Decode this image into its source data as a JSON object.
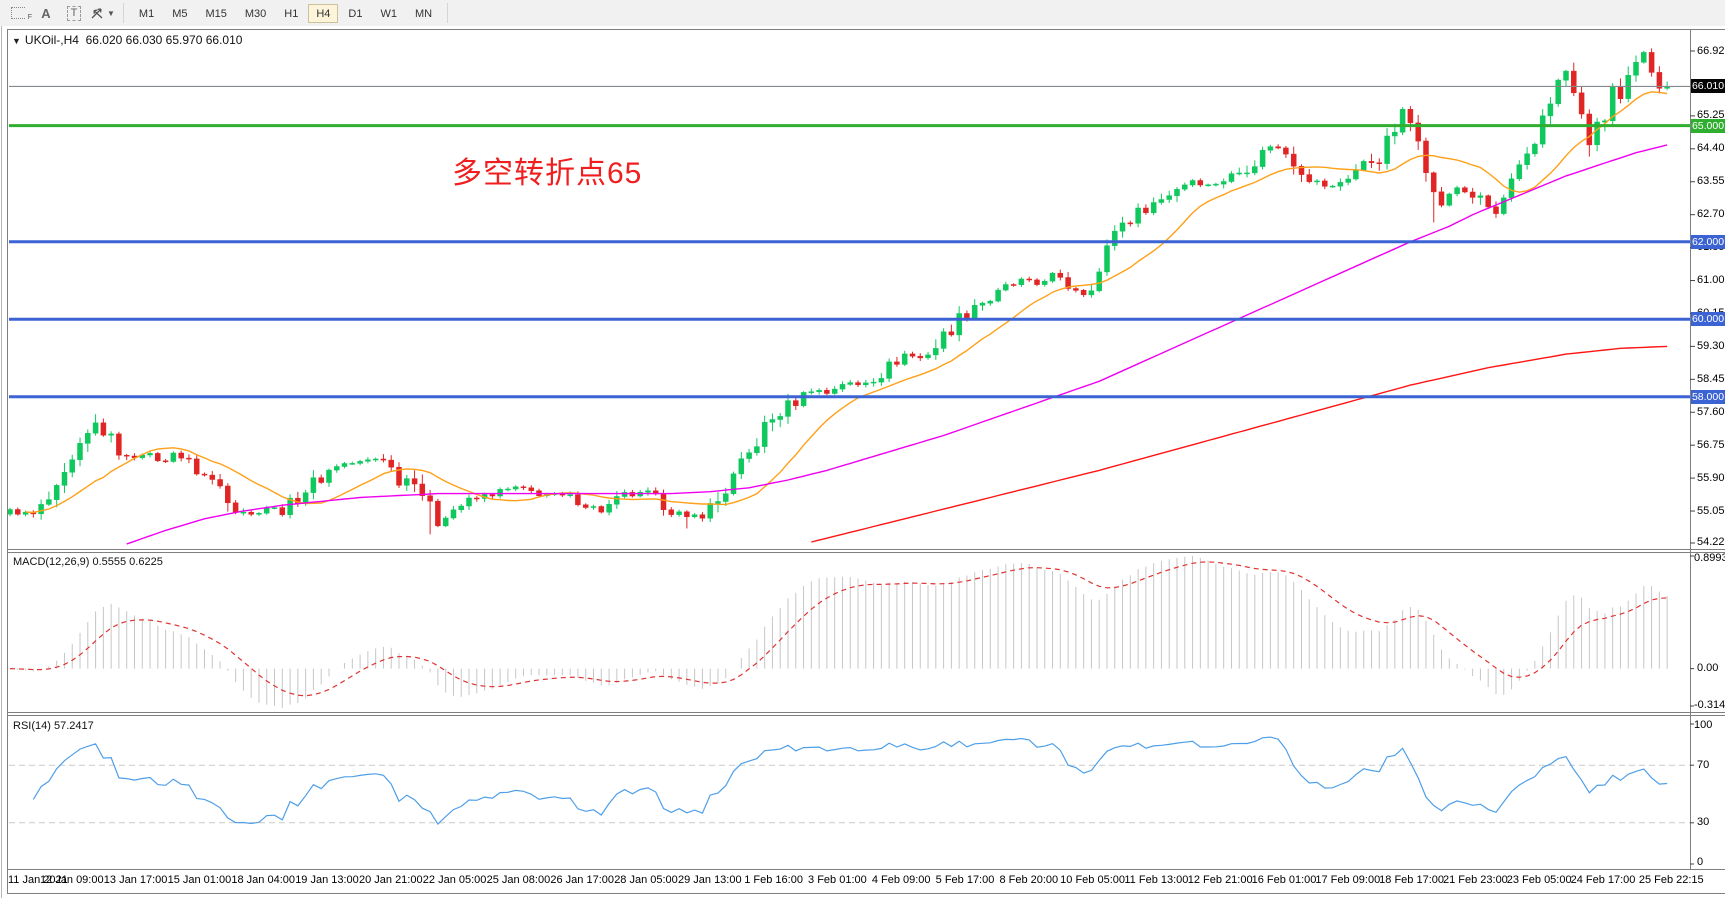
{
  "toolbar": {
    "grid_tool_label": "F",
    "a_tool_label": "A",
    "t_tool_label": "T",
    "timeframes": [
      "M1",
      "M5",
      "M15",
      "M30",
      "H1",
      "H4",
      "D1",
      "W1",
      "MN"
    ],
    "active_timeframe": "H4"
  },
  "title": {
    "collapse_icon": "▼",
    "symbol": "UKOil-,H4",
    "ohlc": "66.020 66.030 65.970 66.010"
  },
  "annotation": {
    "text": "多空转折点65"
  },
  "panes": {
    "macd_label": "MACD(12,26,9) 0.5555 0.6225",
    "rsi_label": "RSI(14) 57.2417"
  },
  "price_axis": {
    "labels": [
      "66.925",
      "65.250",
      "64.400",
      "63.550",
      "62.700",
      "61.850",
      "61.000",
      "60.150",
      "59.300",
      "58.450",
      "57.600",
      "56.750",
      "55.900",
      "55.050",
      "54.225"
    ],
    "prices": [
      66.925,
      65.25,
      64.4,
      63.55,
      62.7,
      61.85,
      61.0,
      60.15,
      59.3,
      58.45,
      57.6,
      56.75,
      55.9,
      55.05,
      54.225
    ],
    "current": {
      "label": "66.010",
      "price": 66.01,
      "bg": "#060606"
    },
    "level_badges": [
      {
        "label": "65.000",
        "price": 65.0,
        "bg": "#2fae2f"
      },
      {
        "label": "62.000",
        "price": 62.0,
        "bg": "#3b63d3"
      },
      {
        "label": "60.000",
        "price": 60.0,
        "bg": "#3b63d3"
      },
      {
        "label": "58.000",
        "price": 58.0,
        "bg": "#3b63d3"
      }
    ]
  },
  "macd_axis": {
    "top": "0.8993",
    "zero": "0.00",
    "bottom": "-0.3143"
  },
  "rsi_axis": {
    "top": "100",
    "upper": "70",
    "lower": "30",
    "bottom": "0",
    "upper_val": 70,
    "lower_val": 30
  },
  "time_axis": [
    "11 Jan 2021",
    "12 Jan 09:00",
    "13 Jan 17:00",
    "15 Jan 01:00",
    "18 Jan 04:00",
    "19 Jan 13:00",
    "20 Jan 21:00",
    "22 Jan 05:00",
    "25 Jan 08:00",
    "26 Jan 17:00",
    "28 Jan 05:00",
    "29 Jan 13:00",
    "1 Feb 16:00",
    "3 Feb 01:00",
    "4 Feb 09:00",
    "5 Feb 17:00",
    "8 Feb 20:00",
    "10 Feb 05:00",
    "11 Feb 13:00",
    "12 Feb 21:00",
    "16 Feb 01:00",
    "17 Feb 09:00",
    "18 Feb 17:00",
    "21 Feb 23:00",
    "23 Feb 05:00",
    "24 Feb 17:00",
    "25 Feb 22:15"
  ],
  "colors": {
    "bull": "#0fc85e",
    "bear": "#e02525",
    "ma_fast": "#ffa018",
    "ma_mid": "#f000f0",
    "ma_slow": "#ff1414",
    "hline_green": "#2fae2f",
    "hline_blue": "#3b63d3",
    "current_line": "#848a90",
    "macd_hist": "#c6c6c6",
    "macd_signal": "#e03333",
    "rsi_line": "#4f9fe8",
    "rsi_levels": "#c9c9c9",
    "annotation": "#f01e1e",
    "frame": "#7f7f7f"
  },
  "chart_data": {
    "type": "candlestick",
    "symbol": "UKOil- H4",
    "visible_price_range": [
      54.05,
      67.45
    ],
    "n_candles": 214,
    "close_waypoints": [
      [
        0,
        55.05
      ],
      [
        3,
        54.95
      ],
      [
        6,
        55.5
      ],
      [
        9,
        56.6
      ],
      [
        11,
        57.3
      ],
      [
        13,
        56.85
      ],
      [
        15,
        56.4
      ],
      [
        17,
        56.55
      ],
      [
        20,
        56.3
      ],
      [
        21,
        56.6
      ],
      [
        24,
        56.1
      ],
      [
        27,
        55.7
      ],
      [
        29,
        55.2
      ],
      [
        31,
        54.95
      ],
      [
        33,
        55.15
      ],
      [
        35,
        55.05
      ],
      [
        38,
        55.6
      ],
      [
        42,
        56.25
      ],
      [
        45,
        56.3
      ],
      [
        48,
        56.45
      ],
      [
        50,
        55.85
      ],
      [
        52,
        55.95
      ],
      [
        54,
        55.1
      ],
      [
        55,
        54.75
      ],
      [
        57,
        55.1
      ],
      [
        59,
        55.3
      ],
      [
        62,
        55.5
      ],
      [
        65,
        55.65
      ],
      [
        68,
        55.5
      ],
      [
        72,
        55.4
      ],
      [
        76,
        55.05
      ],
      [
        79,
        55.45
      ],
      [
        82,
        55.5
      ],
      [
        85,
        55.1
      ],
      [
        87,
        54.85
      ],
      [
        89,
        55.0
      ],
      [
        91,
        55.3
      ],
      [
        93,
        55.9
      ],
      [
        95,
        56.5
      ],
      [
        97,
        57.2
      ],
      [
        99,
        57.6
      ],
      [
        101,
        57.9
      ],
      [
        103,
        58.2
      ],
      [
        105,
        58.1
      ],
      [
        107,
        58.35
      ],
      [
        109,
        58.3
      ],
      [
        112,
        58.6
      ],
      [
        115,
        59.1
      ],
      [
        117,
        59.0
      ],
      [
        119,
        59.3
      ],
      [
        121,
        59.8
      ],
      [
        124,
        60.4
      ],
      [
        126,
        60.5
      ],
      [
        128,
        60.8
      ],
      [
        130,
        61.0
      ],
      [
        132,
        60.9
      ],
      [
        134,
        61.15
      ],
      [
        136,
        60.85
      ],
      [
        138,
        60.7
      ],
      [
        140,
        61.2
      ],
      [
        142,
        62.35
      ],
      [
        144,
        62.6
      ],
      [
        146,
        62.9
      ],
      [
        148,
        63.1
      ],
      [
        150,
        63.4
      ],
      [
        152,
        63.6
      ],
      [
        154,
        63.45
      ],
      [
        156,
        63.6
      ],
      [
        158,
        63.8
      ],
      [
        160,
        64.1
      ],
      [
        162,
        64.5
      ],
      [
        164,
        64.3
      ],
      [
        166,
        63.9
      ],
      [
        168,
        63.5
      ],
      [
        170,
        63.4
      ],
      [
        172,
        63.7
      ],
      [
        174,
        64.0
      ],
      [
        176,
        64.2
      ],
      [
        178,
        64.9
      ],
      [
        179,
        65.35
      ],
      [
        181,
        64.8
      ],
      [
        183,
        63.2
      ],
      [
        184,
        63.0
      ],
      [
        186,
        63.4
      ],
      [
        188,
        63.2
      ],
      [
        190,
        62.9
      ],
      [
        191,
        62.7
      ],
      [
        193,
        63.5
      ],
      [
        195,
        64.1
      ],
      [
        196,
        64.5
      ],
      [
        197,
        65.3
      ],
      [
        199,
        66.1
      ],
      [
        200,
        66.4
      ],
      [
        201,
        65.8
      ],
      [
        202,
        65.2
      ],
      [
        203,
        64.6
      ],
      [
        205,
        65.2
      ],
      [
        206,
        66.0
      ],
      [
        207,
        65.6
      ],
      [
        208,
        66.1
      ],
      [
        209,
        66.5
      ],
      [
        210,
        66.85
      ],
      [
        211,
        66.45
      ],
      [
        212,
        66.15
      ],
      [
        213,
        66.01
      ]
    ],
    "wick_overrides": {
      "11": [
        57.55,
        null
      ],
      "54": [
        null,
        54.45
      ],
      "87": [
        null,
        54.6
      ],
      "183": [
        null,
        62.5
      ],
      "203": [
        null,
        64.2
      ],
      "210": [
        66.93,
        null
      ]
    },
    "last_close": 66.01,
    "ma_mid_waypoints": [
      [
        15,
        54.2
      ],
      [
        20,
        54.55
      ],
      [
        25,
        54.85
      ],
      [
        30,
        55.05
      ],
      [
        35,
        55.2
      ],
      [
        45,
        55.4
      ],
      [
        55,
        55.5
      ],
      [
        70,
        55.5
      ],
      [
        85,
        55.5
      ],
      [
        90,
        55.55
      ],
      [
        95,
        55.65
      ],
      [
        100,
        55.85
      ],
      [
        105,
        56.1
      ],
      [
        110,
        56.4
      ],
      [
        115,
        56.7
      ],
      [
        120,
        57.0
      ],
      [
        125,
        57.35
      ],
      [
        130,
        57.7
      ],
      [
        135,
        58.05
      ],
      [
        140,
        58.4
      ],
      [
        145,
        58.85
      ],
      [
        150,
        59.3
      ],
      [
        155,
        59.75
      ],
      [
        160,
        60.2
      ],
      [
        165,
        60.65
      ],
      [
        170,
        61.1
      ],
      [
        175,
        61.55
      ],
      [
        180,
        62.0
      ],
      [
        185,
        62.4
      ],
      [
        188,
        62.7
      ],
      [
        191,
        62.95
      ],
      [
        194,
        63.2
      ],
      [
        197,
        63.45
      ],
      [
        200,
        63.7
      ],
      [
        203,
        63.9
      ],
      [
        206,
        64.1
      ],
      [
        209,
        64.3
      ],
      [
        213,
        64.5
      ]
    ],
    "ma_slow_waypoints": [
      [
        103,
        54.25
      ],
      [
        110,
        54.6
      ],
      [
        120,
        55.1
      ],
      [
        130,
        55.6
      ],
      [
        140,
        56.1
      ],
      [
        150,
        56.65
      ],
      [
        160,
        57.2
      ],
      [
        170,
        57.75
      ],
      [
        180,
        58.3
      ],
      [
        190,
        58.75
      ],
      [
        200,
        59.1
      ],
      [
        207,
        59.25
      ],
      [
        213,
        59.3
      ]
    ],
    "ma_fast_period": 13,
    "horizontal_levels": [
      {
        "price": 66.01,
        "style": "current"
      },
      {
        "price": 65.0,
        "style": "green"
      },
      {
        "price": 62.0,
        "style": "blue"
      },
      {
        "price": 60.0,
        "style": "blue"
      },
      {
        "price": 58.0,
        "style": "blue"
      }
    ],
    "indicators": {
      "macd": {
        "fast": 12,
        "slow": 26,
        "signal": 9,
        "last_main": 0.5555,
        "last_signal": 0.6225,
        "axis_max": 0.8993,
        "axis_min": -0.3143
      },
      "rsi": {
        "period": 14,
        "last": 57.2417,
        "levels": [
          70,
          30
        ]
      }
    }
  }
}
